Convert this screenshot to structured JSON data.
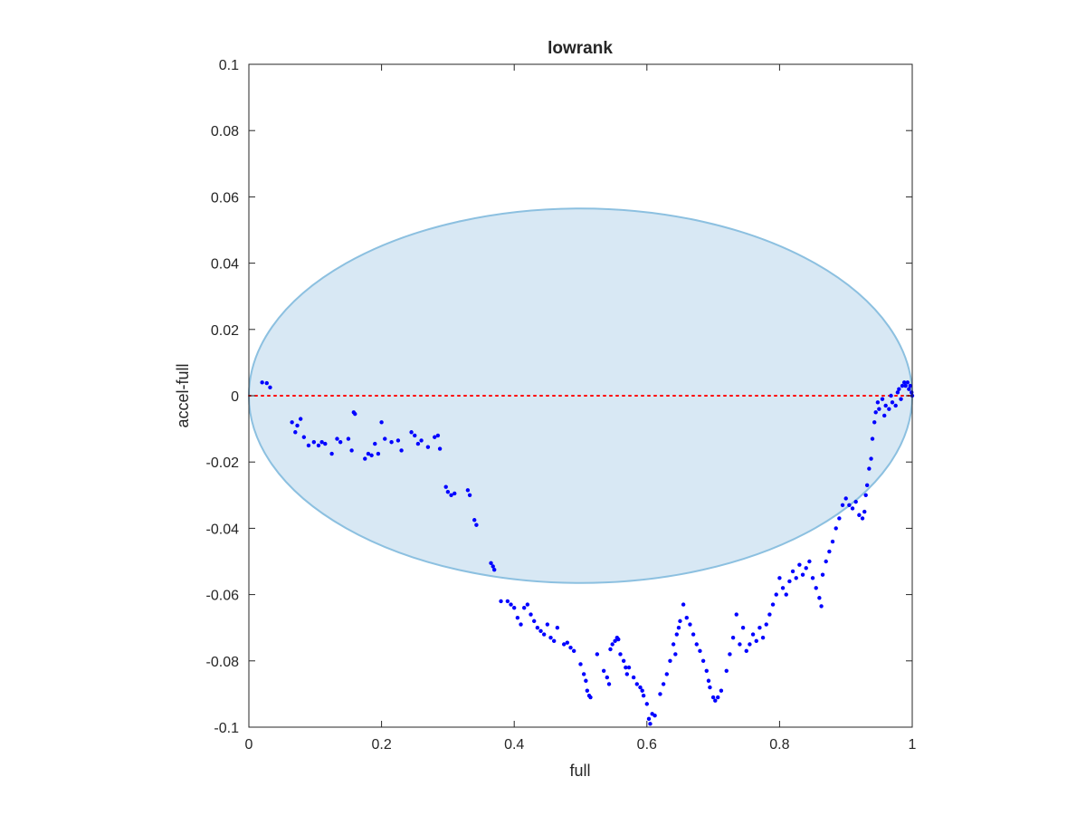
{
  "chart_data": {
    "type": "scatter",
    "title": "lowrank",
    "xlabel": "full",
    "ylabel": "accel-full",
    "xlim": [
      0,
      1
    ],
    "ylim": [
      -0.1,
      0.1
    ],
    "xticks": [
      0,
      0.2,
      0.4,
      0.6,
      0.8,
      1
    ],
    "xtick_labels": [
      "0",
      "0.2",
      "0.4",
      "0.6",
      "0.8",
      "1"
    ],
    "yticks": [
      -0.1,
      -0.08,
      -0.06,
      -0.04,
      -0.02,
      0,
      0.02,
      0.04,
      0.06,
      0.08,
      0.1
    ],
    "ytick_labels": [
      "-0.1",
      "-0.08",
      "-0.06",
      "-0.04",
      "-0.02",
      "0",
      "0.02",
      "0.04",
      "0.06",
      "0.08",
      "0.1"
    ],
    "grid": false,
    "box": true,
    "colors": {
      "points": "#0000ff",
      "ellipse_fill": "#d8e8f4",
      "ellipse_edge": "#8cc0e0",
      "zero_line": "#ff0000",
      "axes": "#262626"
    },
    "ellipse": {
      "center": [
        0.5,
        0.0
      ],
      "semi_axis_x": 0.5,
      "semi_axis_y": 0.0565
    },
    "reference_line": {
      "y": 0,
      "style": "dotted"
    },
    "points": [
      [
        0.02,
        0.004
      ],
      [
        0.027,
        0.0038
      ],
      [
        0.032,
        0.0025
      ],
      [
        0.065,
        -0.008
      ],
      [
        0.07,
        -0.011
      ],
      [
        0.073,
        -0.009
      ],
      [
        0.078,
        -0.007
      ],
      [
        0.083,
        -0.0125
      ],
      [
        0.09,
        -0.015
      ],
      [
        0.098,
        -0.014
      ],
      [
        0.105,
        -0.015
      ],
      [
        0.11,
        -0.014
      ],
      [
        0.115,
        -0.0145
      ],
      [
        0.125,
        -0.0175
      ],
      [
        0.133,
        -0.013
      ],
      [
        0.138,
        -0.014
      ],
      [
        0.15,
        -0.013
      ],
      [
        0.155,
        -0.0165
      ],
      [
        0.158,
        -0.005
      ],
      [
        0.16,
        -0.0055
      ],
      [
        0.175,
        -0.019
      ],
      [
        0.18,
        -0.0175
      ],
      [
        0.185,
        -0.018
      ],
      [
        0.19,
        -0.0145
      ],
      [
        0.195,
        -0.0175
      ],
      [
        0.2,
        -0.008
      ],
      [
        0.205,
        -0.013
      ],
      [
        0.215,
        -0.014
      ],
      [
        0.225,
        -0.0135
      ],
      [
        0.23,
        -0.0165
      ],
      [
        0.245,
        -0.011
      ],
      [
        0.25,
        -0.012
      ],
      [
        0.255,
        -0.0145
      ],
      [
        0.26,
        -0.0135
      ],
      [
        0.27,
        -0.0155
      ],
      [
        0.28,
        -0.0125
      ],
      [
        0.285,
        -0.012
      ],
      [
        0.288,
        -0.016
      ],
      [
        0.297,
        -0.0275
      ],
      [
        0.3,
        -0.029
      ],
      [
        0.305,
        -0.03
      ],
      [
        0.31,
        -0.0295
      ],
      [
        0.33,
        -0.0285
      ],
      [
        0.333,
        -0.03
      ],
      [
        0.34,
        -0.0375
      ],
      [
        0.343,
        -0.039
      ],
      [
        0.365,
        -0.0505
      ],
      [
        0.368,
        -0.0515
      ],
      [
        0.37,
        -0.0525
      ],
      [
        0.38,
        -0.062
      ],
      [
        0.39,
        -0.062
      ],
      [
        0.395,
        -0.063
      ],
      [
        0.4,
        -0.064
      ],
      [
        0.405,
        -0.067
      ],
      [
        0.41,
        -0.069
      ],
      [
        0.415,
        -0.064
      ],
      [
        0.42,
        -0.063
      ],
      [
        0.425,
        -0.066
      ],
      [
        0.43,
        -0.068
      ],
      [
        0.435,
        -0.07
      ],
      [
        0.44,
        -0.071
      ],
      [
        0.445,
        -0.072
      ],
      [
        0.45,
        -0.069
      ],
      [
        0.455,
        -0.073
      ],
      [
        0.46,
        -0.074
      ],
      [
        0.465,
        -0.07
      ],
      [
        0.475,
        -0.075
      ],
      [
        0.48,
        -0.0745
      ],
      [
        0.485,
        -0.076
      ],
      [
        0.49,
        -0.077
      ],
      [
        0.5,
        -0.081
      ],
      [
        0.505,
        -0.084
      ],
      [
        0.508,
        -0.086
      ],
      [
        0.51,
        -0.089
      ],
      [
        0.513,
        -0.0905
      ],
      [
        0.515,
        -0.091
      ],
      [
        0.525,
        -0.078
      ],
      [
        0.535,
        -0.083
      ],
      [
        0.54,
        -0.085
      ],
      [
        0.543,
        -0.087
      ],
      [
        0.545,
        -0.0765
      ],
      [
        0.548,
        -0.075
      ],
      [
        0.552,
        -0.074
      ],
      [
        0.555,
        -0.073
      ],
      [
        0.557,
        -0.0735
      ],
      [
        0.56,
        -0.078
      ],
      [
        0.565,
        -0.08
      ],
      [
        0.568,
        -0.082
      ],
      [
        0.57,
        -0.084
      ],
      [
        0.573,
        -0.082
      ],
      [
        0.58,
        -0.085
      ],
      [
        0.585,
        -0.087
      ],
      [
        0.59,
        -0.088
      ],
      [
        0.593,
        -0.089
      ],
      [
        0.595,
        -0.0905
      ],
      [
        0.6,
        -0.093
      ],
      [
        0.603,
        -0.0975
      ],
      [
        0.605,
        -0.099
      ],
      [
        0.608,
        -0.096
      ],
      [
        0.612,
        -0.0965
      ],
      [
        0.62,
        -0.09
      ],
      [
        0.625,
        -0.087
      ],
      [
        0.63,
        -0.084
      ],
      [
        0.635,
        -0.08
      ],
      [
        0.64,
        -0.075
      ],
      [
        0.643,
        -0.078
      ],
      [
        0.645,
        -0.072
      ],
      [
        0.648,
        -0.07
      ],
      [
        0.65,
        -0.068
      ],
      [
        0.655,
        -0.063
      ],
      [
        0.66,
        -0.067
      ],
      [
        0.665,
        -0.069
      ],
      [
        0.67,
        -0.072
      ],
      [
        0.675,
        -0.075
      ],
      [
        0.68,
        -0.077
      ],
      [
        0.685,
        -0.08
      ],
      [
        0.69,
        -0.083
      ],
      [
        0.693,
        -0.086
      ],
      [
        0.695,
        -0.088
      ],
      [
        0.7,
        -0.091
      ],
      [
        0.703,
        -0.092
      ],
      [
        0.707,
        -0.091
      ],
      [
        0.712,
        -0.089
      ],
      [
        0.72,
        -0.083
      ],
      [
        0.725,
        -0.078
      ],
      [
        0.73,
        -0.073
      ],
      [
        0.735,
        -0.066
      ],
      [
        0.74,
        -0.075
      ],
      [
        0.745,
        -0.07
      ],
      [
        0.75,
        -0.077
      ],
      [
        0.755,
        -0.075
      ],
      [
        0.76,
        -0.072
      ],
      [
        0.765,
        -0.074
      ],
      [
        0.77,
        -0.07
      ],
      [
        0.775,
        -0.073
      ],
      [
        0.78,
        -0.069
      ],
      [
        0.785,
        -0.066
      ],
      [
        0.79,
        -0.063
      ],
      [
        0.795,
        -0.06
      ],
      [
        0.8,
        -0.055
      ],
      [
        0.805,
        -0.058
      ],
      [
        0.81,
        -0.06
      ],
      [
        0.815,
        -0.056
      ],
      [
        0.82,
        -0.053
      ],
      [
        0.825,
        -0.055
      ],
      [
        0.83,
        -0.051
      ],
      [
        0.835,
        -0.054
      ],
      [
        0.84,
        -0.052
      ],
      [
        0.845,
        -0.05
      ],
      [
        0.85,
        -0.055
      ],
      [
        0.855,
        -0.058
      ],
      [
        0.86,
        -0.061
      ],
      [
        0.863,
        -0.0635
      ],
      [
        0.865,
        -0.054
      ],
      [
        0.87,
        -0.05
      ],
      [
        0.875,
        -0.047
      ],
      [
        0.88,
        -0.044
      ],
      [
        0.885,
        -0.04
      ],
      [
        0.89,
        -0.037
      ],
      [
        0.895,
        -0.033
      ],
      [
        0.9,
        -0.031
      ],
      [
        0.905,
        -0.033
      ],
      [
        0.91,
        -0.034
      ],
      [
        0.915,
        -0.032
      ],
      [
        0.92,
        -0.036
      ],
      [
        0.925,
        -0.037
      ],
      [
        0.928,
        -0.035
      ],
      [
        0.93,
        -0.03
      ],
      [
        0.932,
        -0.027
      ],
      [
        0.935,
        -0.022
      ],
      [
        0.938,
        -0.019
      ],
      [
        0.94,
        -0.013
      ],
      [
        0.943,
        -0.008
      ],
      [
        0.945,
        -0.005
      ],
      [
        0.948,
        -0.002
      ],
      [
        0.95,
        -0.004
      ],
      [
        0.955,
        -0.001
      ],
      [
        0.958,
        -0.006
      ],
      [
        0.96,
        -0.003
      ],
      [
        0.965,
        -0.004
      ],
      [
        0.968,
        0.0
      ],
      [
        0.97,
        -0.002
      ],
      [
        0.975,
        -0.003
      ],
      [
        0.978,
        0.001
      ],
      [
        0.98,
        0.002
      ],
      [
        0.983,
        -0.001
      ],
      [
        0.985,
        0.003
      ],
      [
        0.988,
        0.004
      ],
      [
        0.99,
        0.003
      ],
      [
        0.993,
        0.004
      ],
      [
        0.995,
        0.002
      ],
      [
        0.997,
        0.003
      ],
      [
        0.999,
        0.001
      ],
      [
        1.0,
        0.0
      ]
    ]
  }
}
